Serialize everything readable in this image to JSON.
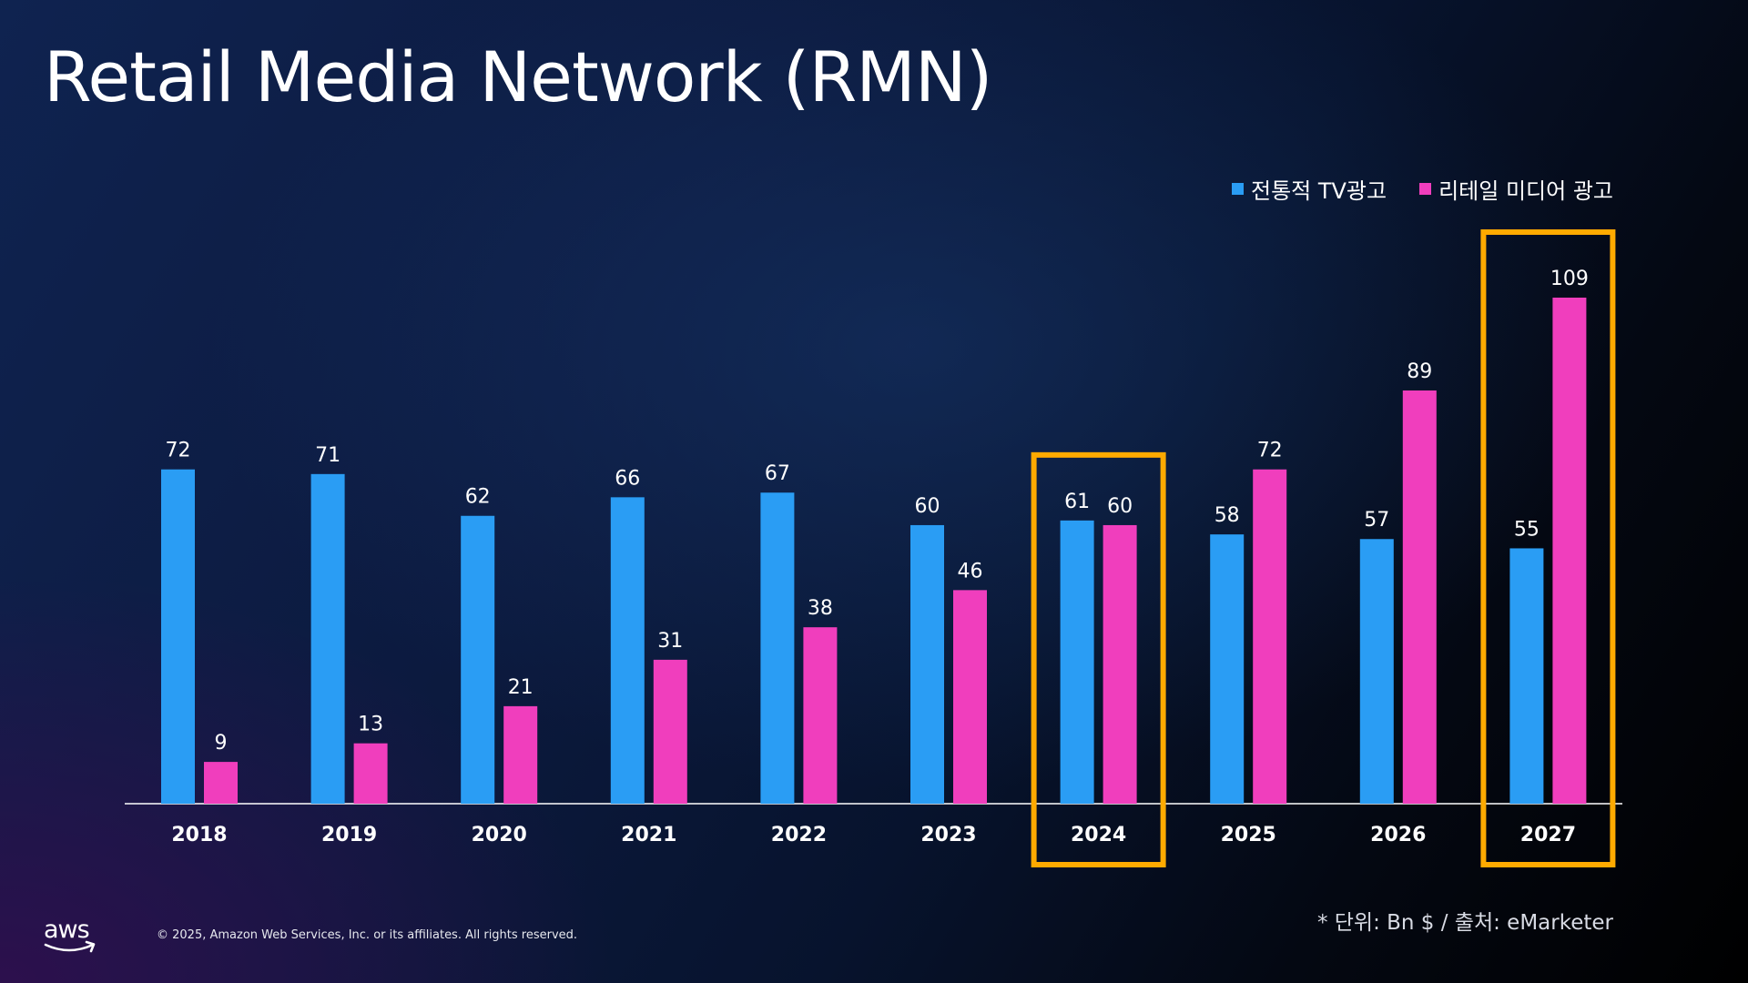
{
  "title": "Retail Media Network (RMN)",
  "legend": [
    {
      "label": "전통적 TV광고",
      "color": "#2a9df4"
    },
    {
      "label": "리테일 미디어 광고",
      "color": "#f03ebd"
    }
  ],
  "footnote": "* 단위: Bn $ / 출처: eMarketer",
  "copyright": "© 2025, Amazon Web Services, Inc. or its affiliates. All rights reserved.",
  "logo": {
    "text": "aws",
    "icon": "aws-smile-arrow-icon"
  },
  "colors": {
    "highlight": "#ffaa00",
    "axis": "#ffffff"
  },
  "chart_data": {
    "type": "bar",
    "categories": [
      "2018",
      "2019",
      "2020",
      "2021",
      "2022",
      "2023",
      "2024",
      "2025",
      "2026",
      "2027"
    ],
    "series": [
      {
        "name": "전통적 TV광고",
        "color": "#2a9df4",
        "values": [
          72,
          71,
          62,
          66,
          67,
          60,
          61,
          58,
          57,
          55
        ]
      },
      {
        "name": "리테일 미디어 광고",
        "color": "#f03ebd",
        "values": [
          9,
          13,
          21,
          31,
          38,
          46,
          60,
          72,
          89,
          109
        ]
      }
    ],
    "highlighted_categories": [
      "2024",
      "2027"
    ],
    "data_labels": true,
    "legend_position": "top-right",
    "grid": false,
    "ylim": [
      0,
      109
    ]
  }
}
